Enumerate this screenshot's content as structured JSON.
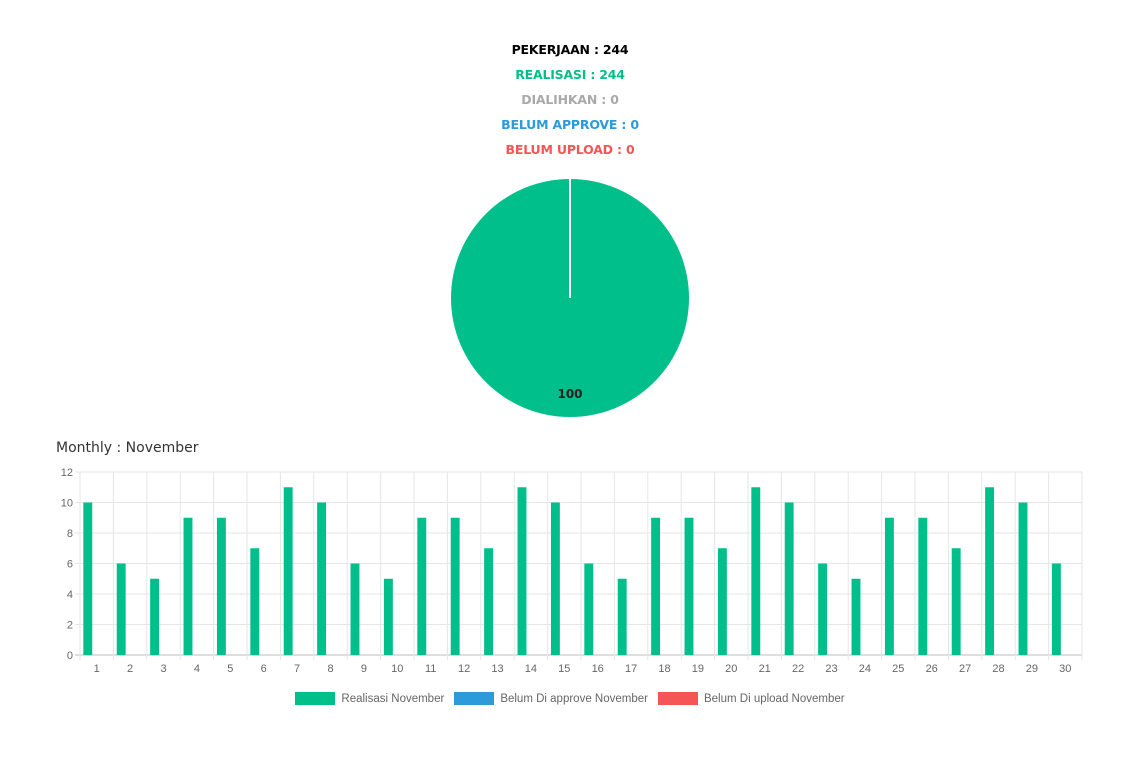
{
  "summary": {
    "pekerjaan": "PEKERJAAN : 244",
    "realisasi": "REALISASI : 244",
    "dialihkan": "DIALIHKAN : 0",
    "belum_approve": "BELUM APPROVE : 0",
    "belum_upload": "BELUM UPLOAD : 0"
  },
  "colors": {
    "realisasi": "#00bf8a",
    "belum_approve": "#2d9ad9",
    "belum_upload": "#f55555",
    "dialihkan": "#a9a9a9",
    "pekerjaan": "#000000"
  },
  "monthly_title": "Monthly : November",
  "chart_data": [
    {
      "type": "pie",
      "slices": [
        {
          "label": "Realisasi",
          "value": 100,
          "color": "#00bf8a"
        },
        {
          "label": "Belum Di approve",
          "value": 0,
          "color": "#2d9ad9"
        },
        {
          "label": "Belum Di upload",
          "value": 0,
          "color": "#f55555"
        }
      ],
      "data_labels": [
        "100"
      ]
    },
    {
      "type": "bar",
      "categories": [
        "1",
        "2",
        "3",
        "4",
        "5",
        "6",
        "7",
        "8",
        "9",
        "10",
        "11",
        "12",
        "13",
        "14",
        "15",
        "16",
        "17",
        "18",
        "19",
        "20",
        "21",
        "22",
        "23",
        "24",
        "25",
        "26",
        "27",
        "28",
        "29",
        "30"
      ],
      "series": [
        {
          "name": "Realisasi November",
          "color": "#00bf8a",
          "values": [
            10,
            6,
            5,
            9,
            9,
            7,
            11,
            10,
            6,
            5,
            9,
            9,
            7,
            11,
            10,
            6,
            5,
            9,
            9,
            7,
            11,
            10,
            6,
            5,
            9,
            9,
            7,
            11,
            10,
            6
          ]
        },
        {
          "name": "Belum Di approve November",
          "color": "#2d9ad9",
          "values": [
            0,
            0,
            0,
            0,
            0,
            0,
            0,
            0,
            0,
            0,
            0,
            0,
            0,
            0,
            0,
            0,
            0,
            0,
            0,
            0,
            0,
            0,
            0,
            0,
            0,
            0,
            0,
            0,
            0,
            0
          ]
        },
        {
          "name": "Belum Di upload November",
          "color": "#f55555",
          "values": [
            0,
            0,
            0,
            0,
            0,
            0,
            0,
            0,
            0,
            0,
            0,
            0,
            0,
            0,
            0,
            0,
            0,
            0,
            0,
            0,
            0,
            0,
            0,
            0,
            0,
            0,
            0,
            0,
            0,
            0
          ]
        }
      ],
      "ylim": [
        0,
        12
      ],
      "yticks": [
        "0",
        "2",
        "4",
        "6",
        "8",
        "10",
        "12"
      ],
      "grid": true,
      "legend": "bottom"
    }
  ]
}
